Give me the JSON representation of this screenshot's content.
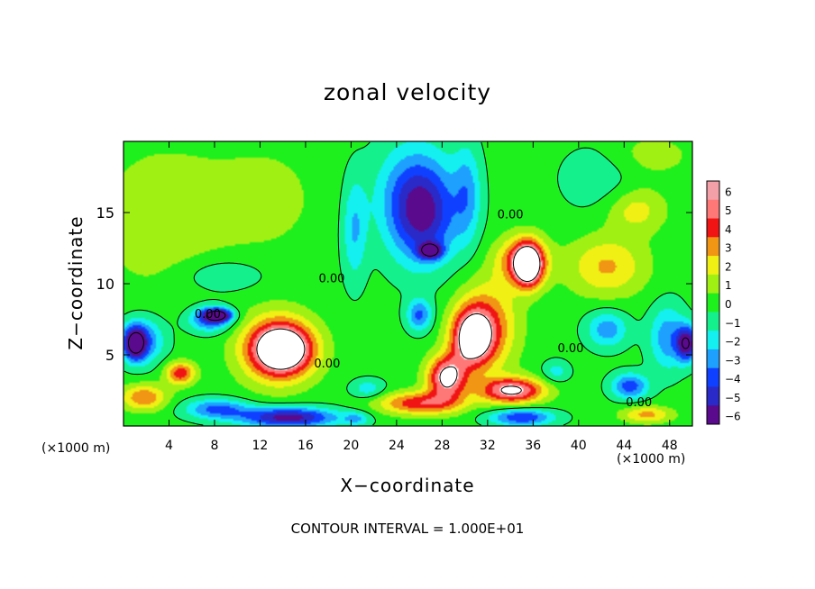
{
  "chart_data": {
    "type": "heatmap",
    "title": "zonal velocity",
    "xlabel": "X−coordinate",
    "ylabel": "Z−coordinate",
    "x_unit_left": "(×1000 m)",
    "x_unit_right": "(×1000 m)",
    "xlim": [
      0,
      50
    ],
    "ylim": [
      0,
      20
    ],
    "xticks": [
      "4",
      "8",
      "12",
      "16",
      "20",
      "24",
      "28",
      "32",
      "36",
      "40",
      "44",
      "48"
    ],
    "yticks": [
      "5",
      "10",
      "15"
    ],
    "colorbar_ticks": [
      "6",
      "5",
      "4",
      "3",
      "2",
      "1",
      "0",
      "−1",
      "−2",
      "−3",
      "−4",
      "−5",
      "−6"
    ],
    "colorbar_range": [
      -6,
      6
    ],
    "contour_labels": [
      {
        "text": "0.00",
        "x": 7.4,
        "y": 7.6
      },
      {
        "text": "0.00",
        "x": 18.3,
        "y": 10.1
      },
      {
        "text": "0.00",
        "x": 34.0,
        "y": 14.6
      },
      {
        "text": "0.00",
        "x": 17.9,
        "y": 4.1
      },
      {
        "text": "0.00",
        "x": 39.3,
        "y": 5.2
      },
      {
        "text": "0.00",
        "x": 45.3,
        "y": 1.4
      }
    ],
    "features": [
      {
        "kind": "negative",
        "value": -6,
        "x": 27.0,
        "y": 12.3,
        "sx": 1.0,
        "sy": 0.55
      },
      {
        "kind": "negative",
        "value": -4.6,
        "x": 26.3,
        "y": 14.6,
        "sx": 3.0,
        "sy": 3.4
      },
      {
        "kind": "negative",
        "value": -2.4,
        "x": 25.5,
        "y": 16.8,
        "sx": 3.4,
        "sy": 3.5
      },
      {
        "kind": "negative",
        "value": -3.6,
        "x": 26.0,
        "y": 7.8,
        "sx": 1.1,
        "sy": 1.1
      },
      {
        "kind": "positive",
        "value": 6.6,
        "x": 14.0,
        "y": 5.4,
        "sx": 2.6,
        "sy": 1.7
      },
      {
        "kind": "positive",
        "value": 3.6,
        "x": 13.4,
        "y": 5.4,
        "sx": 3.3,
        "sy": 2.5
      },
      {
        "kind": "positive",
        "value": 6.4,
        "x": 30.6,
        "y": 6.2,
        "sx": 1.8,
        "sy": 2.0
      },
      {
        "kind": "positive",
        "value": 6.4,
        "x": 28.4,
        "y": 3.4,
        "sx": 1.7,
        "sy": 1.5
      },
      {
        "kind": "positive",
        "value": 3.6,
        "x": 32.0,
        "y": 7.0,
        "sx": 2.6,
        "sy": 3.1
      },
      {
        "kind": "positive",
        "value": 6.6,
        "x": 35.6,
        "y": 11.3,
        "sx": 1.2,
        "sy": 1.5
      },
      {
        "kind": "positive",
        "value": 4.2,
        "x": 35.0,
        "y": 11.6,
        "sx": 2.2,
        "sy": 1.7
      },
      {
        "kind": "positive",
        "value": 2.8,
        "x": 42.5,
        "y": 11.2,
        "sx": 3.4,
        "sy": 2.1
      },
      {
        "kind": "positive",
        "value": 4.4,
        "x": 5.0,
        "y": 3.7,
        "sx": 1.3,
        "sy": 0.8
      },
      {
        "kind": "positive",
        "value": 6.2,
        "x": 34.2,
        "y": 2.5,
        "sx": 2.8,
        "sy": 0.9
      },
      {
        "kind": "positive",
        "value": 4.4,
        "x": 26.0,
        "y": 1.6,
        "sx": 3.6,
        "sy": 0.8
      },
      {
        "kind": "positive",
        "value": 3.6,
        "x": 1.8,
        "y": 2.0,
        "sx": 2.0,
        "sy": 0.9
      },
      {
        "kind": "positive",
        "value": 3.0,
        "x": 46.0,
        "y": 0.8,
        "sx": 2.2,
        "sy": 0.6
      },
      {
        "kind": "negative",
        "value": -6.4,
        "x": 8.3,
        "y": 7.8,
        "sx": 1.2,
        "sy": 0.45
      },
      {
        "kind": "negative",
        "value": -4.0,
        "x": 7.6,
        "y": 7.5,
        "sx": 1.9,
        "sy": 0.9
      },
      {
        "kind": "negative",
        "value": -6.4,
        "x": 1.0,
        "y": 5.8,
        "sx": 0.95,
        "sy": 1.1
      },
      {
        "kind": "negative",
        "value": -3.4,
        "x": 1.7,
        "y": 6.0,
        "sx": 1.9,
        "sy": 1.6
      },
      {
        "kind": "negative",
        "value": -6.2,
        "x": 49.5,
        "y": 5.8,
        "sx": 0.9,
        "sy": 1.2
      },
      {
        "kind": "negative",
        "value": -3.0,
        "x": 47.8,
        "y": 6.2,
        "sx": 1.6,
        "sy": 2.3
      },
      {
        "kind": "negative",
        "value": -3.0,
        "x": 42.5,
        "y": 6.8,
        "sx": 1.8,
        "sy": 1.3
      },
      {
        "kind": "negative",
        "value": -4.0,
        "x": 44.5,
        "y": 2.8,
        "sx": 1.6,
        "sy": 0.9
      },
      {
        "kind": "negative",
        "value": -6.0,
        "x": 14.5,
        "y": 0.6,
        "sx": 4.2,
        "sy": 0.7
      },
      {
        "kind": "negative",
        "value": -3.6,
        "x": 8.2,
        "y": 1.2,
        "sx": 2.8,
        "sy": 0.7
      },
      {
        "kind": "negative",
        "value": -4.4,
        "x": 35.0,
        "y": 0.6,
        "sx": 2.8,
        "sy": 0.6
      },
      {
        "kind": "negative",
        "value": -2.0,
        "x": 20.5,
        "y": 0.5,
        "sx": 1.2,
        "sy": 0.5
      },
      {
        "kind": "negative",
        "value": -2.4,
        "x": 20.3,
        "y": 13.8,
        "sx": 1.1,
        "sy": 3.6
      },
      {
        "kind": "negative",
        "value": -2.4,
        "x": 30.2,
        "y": 16.4,
        "sx": 1.2,
        "sy": 3.4
      },
      {
        "kind": "positive",
        "value": 1.5,
        "x": 3.5,
        "y": 14.5,
        "sx": 5.5,
        "sy": 5.0
      },
      {
        "kind": "positive",
        "value": 1.0,
        "x": 12.5,
        "y": 16.0,
        "sx": 5.0,
        "sy": 4.0
      },
      {
        "kind": "positive",
        "value": 2.2,
        "x": 45.0,
        "y": 15.2,
        "sx": 2.6,
        "sy": 1.6
      },
      {
        "kind": "positive",
        "value": 1.2,
        "x": 46.0,
        "y": 19.0,
        "sx": 4.0,
        "sy": 1.6
      },
      {
        "kind": "negative",
        "value": -1.4,
        "x": 8.5,
        "y": 10.6,
        "sx": 4.0,
        "sy": 1.3
      },
      {
        "kind": "negative",
        "value": -1.2,
        "x": 42.0,
        "y": 17.5,
        "sx": 3.5,
        "sy": 2.5
      },
      {
        "kind": "negative",
        "value": -1.8,
        "x": 38.0,
        "y": 3.8,
        "sx": 1.2,
        "sy": 0.8
      },
      {
        "kind": "negative",
        "value": -2.0,
        "x": 21.5,
        "y": 2.6,
        "sx": 1.5,
        "sy": 0.7
      }
    ]
  },
  "footer": "CONTOUR INTERVAL = 1.000E+01",
  "colors": {
    "scale": [
      "#5a0a8c",
      "#2a2ac8",
      "#1040ff",
      "#1ea0ff",
      "#14f0f0",
      "#14f08c",
      "#1ef01e",
      "#a0f014",
      "#f0f014",
      "#f09614",
      "#f01414",
      "#ff7878",
      "#ffffff"
    ]
  }
}
